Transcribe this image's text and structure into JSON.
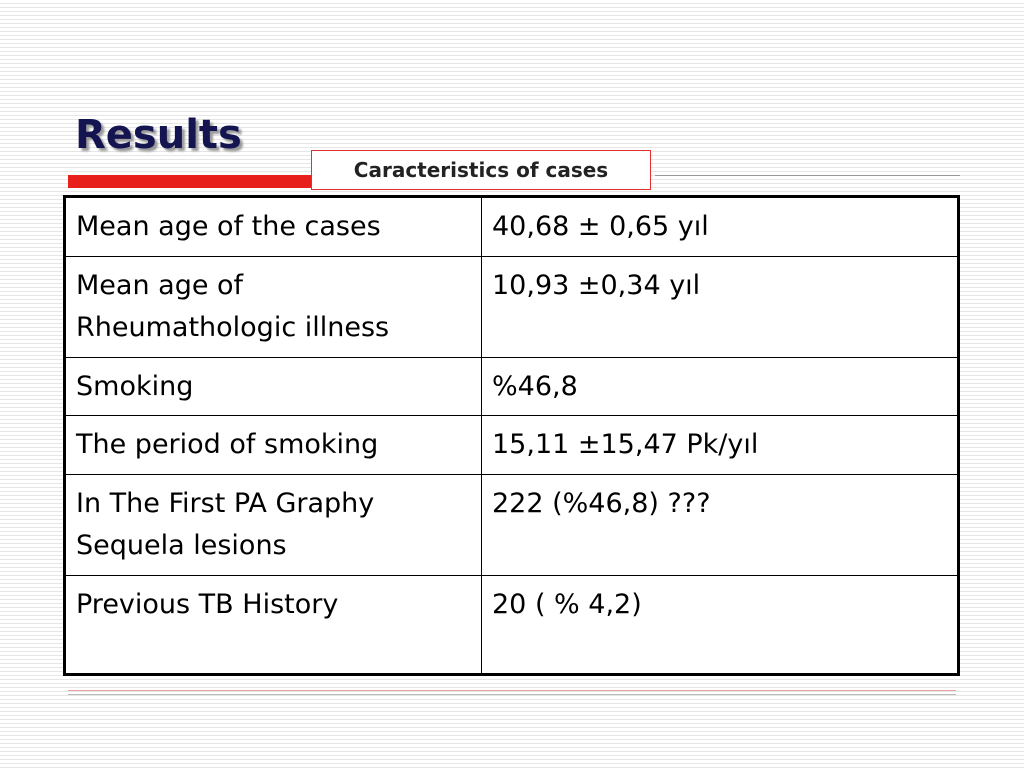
{
  "header": {
    "title": "Results",
    "subtitle": "Caracteristics of cases"
  },
  "table": {
    "rows": [
      [
        "Mean age of the cases",
        "40,68 ± 0,65 yıl"
      ],
      [
        "Mean age of\nRheumathologic illness",
        "10,93 ±0,34 yıl"
      ],
      [
        "Smoking",
        "%46,8"
      ],
      [
        "The period of smoking",
        "15,11 ±15,47  Pk/yıl"
      ],
      [
        "In The First PA Graphy\nSequela lesions",
        "222  (%46,8) ???"
      ],
      [
        "Previous TB History",
        "20 ( % 4,2)"
      ]
    ]
  }
}
